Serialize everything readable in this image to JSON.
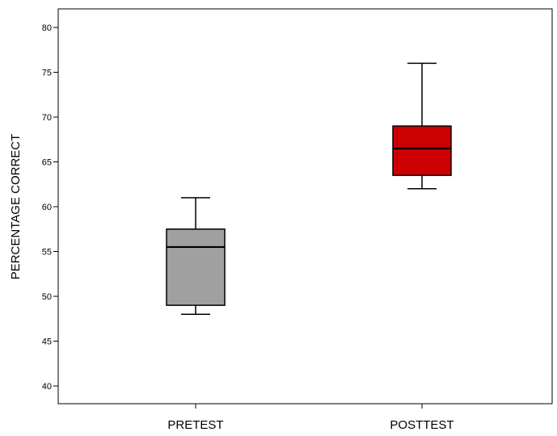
{
  "chart_data": {
    "type": "box",
    "title": "",
    "xlabel": "",
    "ylabel": "PERCENTAGE CORRECT",
    "ylim": [
      38,
      82
    ],
    "yticks": [
      40,
      45,
      50,
      55,
      60,
      65,
      70,
      75,
      80
    ],
    "grid": false,
    "categories": [
      "PRETEST",
      "POSTTEST"
    ],
    "boxes": [
      {
        "category": "PRETEST",
        "min": 48,
        "q1": 49,
        "median": 55.5,
        "q3": 57.5,
        "max": 61,
        "color": "#a0a0a0"
      },
      {
        "category": "POSTTEST",
        "min": 62,
        "q1": 63.5,
        "median": 66.5,
        "q3": 69,
        "max": 76,
        "color": "#cc0000"
      }
    ]
  }
}
